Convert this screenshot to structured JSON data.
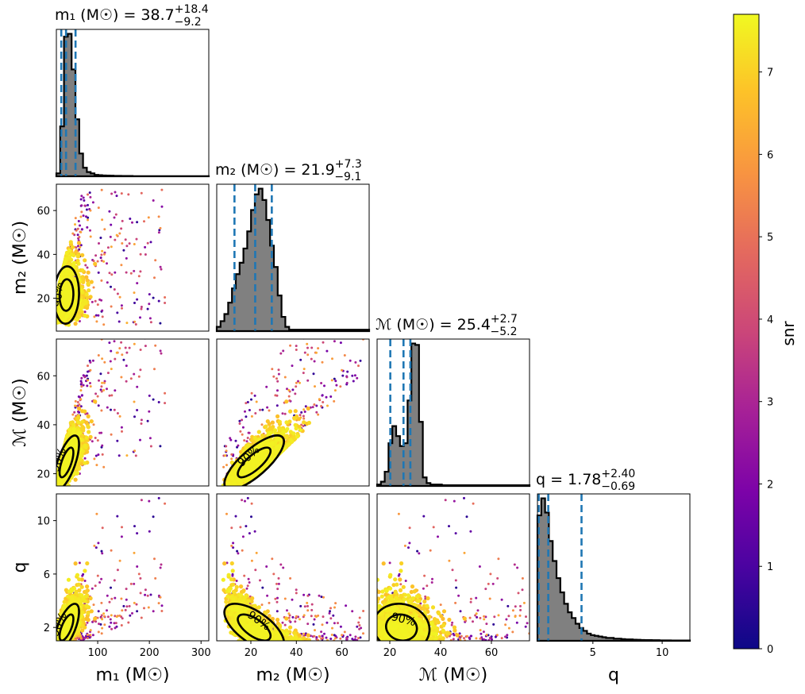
{
  "chart_data": {
    "type": "scatter",
    "kind": "corner-plot",
    "parameters": [
      {
        "key": "m1",
        "axis_label": "m₁ (M☉)",
        "range": [
          20,
          315
        ],
        "ticks": [
          100,
          200,
          300
        ],
        "title": {
          "prefix": "m₁ (M☉) = ",
          "value": "38.7",
          "plus": "+18.4",
          "minus": "−9.2"
        },
        "quantiles": [
          29.5,
          38.7,
          57.1
        ],
        "hist": [
          0.02,
          0.35,
          0.98,
          1.0,
          0.75,
          0.4,
          0.16,
          0.06,
          0.03,
          0.02,
          0.01,
          0.008,
          0.006,
          0.005,
          0.004,
          0.003,
          0.003,
          0.002,
          0.002,
          0.002,
          0.001,
          0.001,
          0.001,
          0.001,
          0.001,
          0.001,
          0.001,
          0.001,
          0.001,
          0.001,
          0.001,
          0.001,
          0.001,
          0.001,
          0.001,
          0.001,
          0.001,
          0.001,
          0.001,
          0.001
        ]
      },
      {
        "key": "m2",
        "axis_label": "m₂ (M☉)",
        "range": [
          5,
          72
        ],
        "ticks": [
          20,
          40,
          60
        ],
        "title": {
          "prefix": "m₂ (M☉) = ",
          "value": "21.9",
          "plus": "+7.3",
          "minus": "−9.1"
        },
        "quantiles": [
          12.8,
          21.9,
          29.2
        ],
        "hist": [
          0.03,
          0.07,
          0.12,
          0.2,
          0.3,
          0.4,
          0.48,
          0.58,
          0.7,
          0.85,
          0.96,
          1.0,
          0.92,
          0.78,
          0.6,
          0.45,
          0.25,
          0.1,
          0.03,
          0.01,
          0.01,
          0.01,
          0.01,
          0.01,
          0.01,
          0.01,
          0.01,
          0.01,
          0.01,
          0.01,
          0.01,
          0.01,
          0.01,
          0.01,
          0.01,
          0.01,
          0.01,
          0.01,
          0.01,
          0.01
        ]
      },
      {
        "key": "mc",
        "axis_label": "ℳ (M☉)",
        "range": [
          15,
          75
        ],
        "ticks": [
          20,
          40,
          60
        ],
        "title": {
          "prefix": "ℳ (M☉) = ",
          "value": "25.4",
          "plus": "+2.7",
          "minus": "−5.2"
        },
        "quantiles": [
          20.2,
          25.4,
          28.1
        ],
        "hist": [
          0.01,
          0.03,
          0.1,
          0.3,
          0.42,
          0.35,
          0.28,
          0.3,
          0.6,
          1.0,
          0.99,
          0.45,
          0.06,
          0.02,
          0.01,
          0.01,
          0.01,
          0.005,
          0.005,
          0.005,
          0.005,
          0.005,
          0.005,
          0.005,
          0.005,
          0.005,
          0.005,
          0.005,
          0.005,
          0.005,
          0.005,
          0.005,
          0.005,
          0.005,
          0.005,
          0.005,
          0.005,
          0.005,
          0.005,
          0.005
        ]
      },
      {
        "key": "q",
        "axis_label": "q",
        "range": [
          1,
          12
        ],
        "ticks": [
          5,
          10
        ],
        "title": {
          "prefix": "q = ",
          "value": "1.78",
          "plus": "+2.40",
          "minus": "−0.69"
        },
        "quantiles": [
          1.09,
          1.78,
          4.18
        ],
        "hist": [
          0.88,
          1.0,
          0.9,
          0.7,
          0.56,
          0.44,
          0.34,
          0.26,
          0.2,
          0.16,
          0.12,
          0.09,
          0.07,
          0.05,
          0.04,
          0.035,
          0.03,
          0.025,
          0.02,
          0.02,
          0.015,
          0.015,
          0.012,
          0.01,
          0.01,
          0.008,
          0.007,
          0.006,
          0.005,
          0.005,
          0.004,
          0.004,
          0.003,
          0.003,
          0.003,
          0.002,
          0.002,
          0.002,
          0.002,
          0.002
        ]
      }
    ],
    "scatter_ticks": {
      "m2": [
        20,
        40,
        60
      ],
      "mc": [
        20,
        40,
        60
      ],
      "q": [
        2,
        6,
        10
      ]
    },
    "contour_label": "90%",
    "colorbar": {
      "label": "snr",
      "range": [
        0,
        7.7
      ],
      "ticks": [
        0,
        1,
        2,
        3,
        4,
        5,
        6,
        7
      ],
      "colormap": "plasma"
    },
    "seed": 12345
  }
}
